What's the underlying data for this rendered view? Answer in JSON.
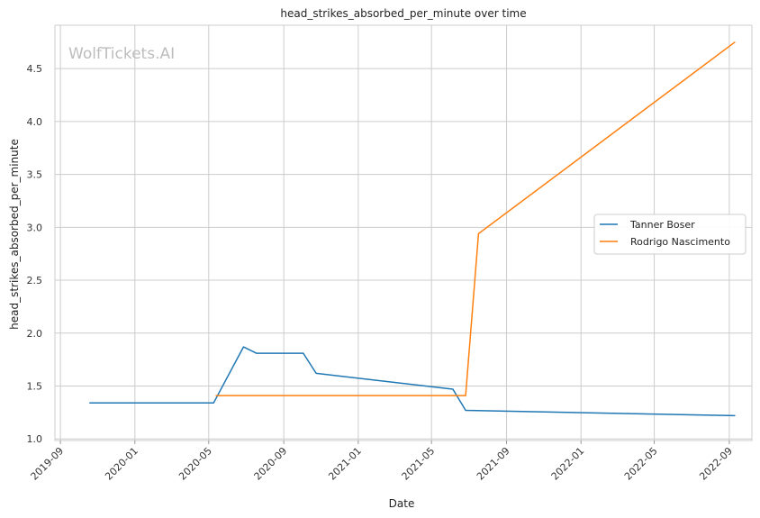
{
  "chart_data": {
    "type": "line",
    "title": "head_strikes_absorbed_per_minute over time",
    "xlabel": "Date",
    "ylabel": "head_strikes_absorbed_per_minute",
    "watermark": "WolfTickets.AI",
    "x_axis": {
      "kind": "date",
      "range": [
        "2019-08-23",
        "2022-10-08"
      ],
      "ticks": [
        "2019-09-01",
        "2020-01-01",
        "2020-05-01",
        "2020-09-01",
        "2021-01-01",
        "2021-05-01",
        "2021-09-01",
        "2022-01-01",
        "2022-05-01",
        "2022-09-01"
      ],
      "tick_labels": [
        "2019-09",
        "2020-01",
        "2020-05",
        "2020-09",
        "2021-01",
        "2021-05",
        "2021-09",
        "2022-01",
        "2022-05",
        "2022-09"
      ]
    },
    "y_axis": {
      "range": [
        0.985,
        4.91
      ],
      "ticks": [
        1.0,
        1.5,
        2.0,
        2.5,
        3.0,
        3.5,
        4.0,
        4.5
      ],
      "tick_labels": [
        "1.0",
        "1.5",
        "2.0",
        "2.5",
        "3.0",
        "3.5",
        "4.0",
        "4.5"
      ]
    },
    "grid": true,
    "legend_position": "center-right",
    "series": [
      {
        "name": "Tanner Boser",
        "color": "#1f77b4",
        "points": [
          {
            "x": "2019-10-19",
            "y": 1.34
          },
          {
            "x": "2020-05-09",
            "y": 1.34
          },
          {
            "x": "2020-06-27",
            "y": 1.87
          },
          {
            "x": "2020-07-18",
            "y": 1.81
          },
          {
            "x": "2020-10-03",
            "y": 1.81
          },
          {
            "x": "2020-10-24",
            "y": 1.62
          },
          {
            "x": "2021-06-05",
            "y": 1.47
          },
          {
            "x": "2021-06-26",
            "y": 1.27
          },
          {
            "x": "2022-09-10",
            "y": 1.22
          }
        ]
      },
      {
        "name": "Rodrigo Nascimento",
        "color": "#ff7f0e",
        "points": [
          {
            "x": "2020-05-13",
            "y": 1.41
          },
          {
            "x": "2021-06-26",
            "y": 1.41
          },
          {
            "x": "2021-07-17",
            "y": 2.94
          },
          {
            "x": "2022-09-10",
            "y": 4.75
          }
        ]
      }
    ]
  }
}
